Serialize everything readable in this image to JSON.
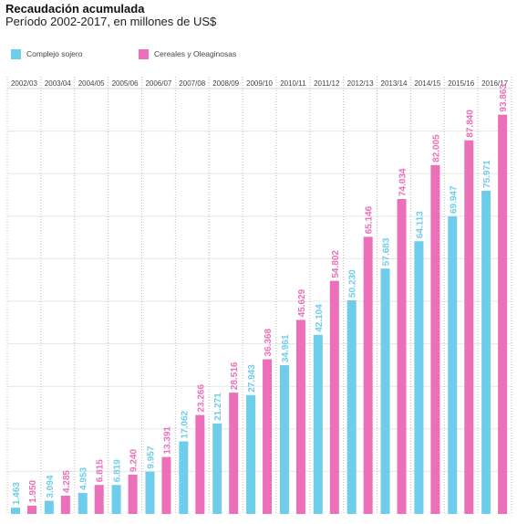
{
  "chart_data": {
    "type": "bar",
    "title": "Recaudación acumulada",
    "subtitle": "Período 2002-2017, en millones de US$",
    "categories": [
      "2002/03",
      "2003/04",
      "2004/05",
      "2005/06",
      "2006/07",
      "2007/08",
      "2008/09",
      "2009/10",
      "2010/11",
      "2011/12",
      "2012/13",
      "2013/14",
      "2014/15",
      "2015/16",
      "2016/17"
    ],
    "series": [
      {
        "name": "Complejo sojero",
        "color": "#6ecdea",
        "values": [
          1463,
          3094,
          4953,
          6819,
          9957,
          17062,
          21271,
          27943,
          34961,
          42104,
          50230,
          57683,
          64113,
          69947,
          75971
        ],
        "labels": [
          "1.463",
          "3.094",
          "4.953",
          "6.819",
          "9.957",
          "17.062",
          "21.271",
          "27.943",
          "34.961",
          "42.104",
          "50.230",
          "57.683",
          "64.113",
          "69.947",
          "75.971"
        ]
      },
      {
        "name": "Cereales y Oleaginosas",
        "color": "#ec6fb9",
        "values": [
          1950,
          4285,
          6815,
          9240,
          13391,
          23266,
          28516,
          36368,
          45629,
          54802,
          65146,
          74034,
          82005,
          87840,
          93863
        ],
        "labels": [
          "1.950",
          "4.285",
          "6.815",
          "9.240",
          "13.391",
          "23.266",
          "28.516",
          "36.368",
          "45.629",
          "54.802",
          "65.146",
          "74.034",
          "82.005",
          "87.840",
          "93.863"
        ]
      }
    ],
    "ylim": [
      0,
      100000
    ],
    "grid": true,
    "legend_position": "top-left"
  }
}
